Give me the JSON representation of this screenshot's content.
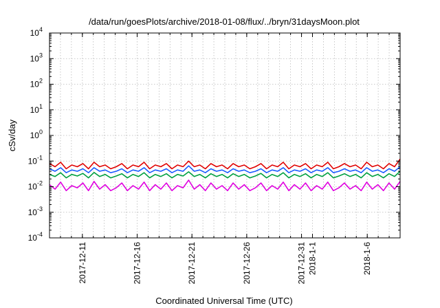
{
  "chart_data": {
    "type": "line",
    "title": "/data/run/goesPlots/archive/2018-01-08/flux/../bryn/31daysMoon.plot",
    "xlabel": "Coordinated Universal Time (UTC)",
    "ylabel": "cSv/day",
    "yscale": "log",
    "ylim": [
      0.0001,
      10000
    ],
    "xlim": [
      "2017-12-08",
      "2018-01-09"
    ],
    "grid": true,
    "y_ticks": [
      {
        "base": "10",
        "exp": "-4",
        "value": 0.0001
      },
      {
        "base": "10",
        "exp": "-3",
        "value": 0.001
      },
      {
        "base": "10",
        "exp": "-2",
        "value": 0.01
      },
      {
        "base": "10",
        "exp": "-1",
        "value": 0.1
      },
      {
        "base": "10",
        "exp": "0",
        "value": 1
      },
      {
        "base": "10",
        "exp": "1",
        "value": 10
      },
      {
        "base": "10",
        "exp": "2",
        "value": 100
      },
      {
        "base": "10",
        "exp": "3",
        "value": 1000
      },
      {
        "base": "10",
        "exp": "4",
        "value": 10000
      }
    ],
    "x_ticks": [
      {
        "label": "2017-12-11",
        "date": "2017-12-11"
      },
      {
        "label": "2017-12-16",
        "date": "2017-12-16"
      },
      {
        "label": "2017-12-21",
        "date": "2017-12-21"
      },
      {
        "label": "2017-12-26",
        "date": "2017-12-26"
      },
      {
        "label": "2017-12-31",
        "date": "2017-12-31"
      },
      {
        "label": "2018-1-1",
        "date": "2018-01-01"
      },
      {
        "label": "2018-1-6",
        "date": "2018-01-06"
      }
    ],
    "series": [
      {
        "color": "#e00000",
        "values": [
          0.08,
          0.06,
          0.09,
          0.05,
          0.07,
          0.06,
          0.08,
          0.05,
          0.09,
          0.06,
          0.07,
          0.05,
          0.06,
          0.08,
          0.05,
          0.07,
          0.06,
          0.09,
          0.05,
          0.07,
          0.06,
          0.08,
          0.05,
          0.07,
          0.06,
          0.1,
          0.06,
          0.07,
          0.05,
          0.08,
          0.06,
          0.07,
          0.05,
          0.08,
          0.06,
          0.07,
          0.05,
          0.06,
          0.08,
          0.05,
          0.07,
          0.06,
          0.09,
          0.05,
          0.07,
          0.06,
          0.08,
          0.05,
          0.07,
          0.06,
          0.09,
          0.05,
          0.06,
          0.08,
          0.06,
          0.07,
          0.05,
          0.09,
          0.06,
          0.07,
          0.05,
          0.08,
          0.06,
          0.12
        ]
      },
      {
        "color": "#00a040",
        "values": [
          0.03,
          0.025,
          0.035,
          0.022,
          0.03,
          0.026,
          0.033,
          0.022,
          0.036,
          0.025,
          0.03,
          0.022,
          0.026,
          0.032,
          0.022,
          0.03,
          0.025,
          0.035,
          0.022,
          0.03,
          0.025,
          0.032,
          0.022,
          0.03,
          0.026,
          0.038,
          0.025,
          0.03,
          0.022,
          0.032,
          0.025,
          0.03,
          0.022,
          0.032,
          0.025,
          0.03,
          0.022,
          0.026,
          0.033,
          0.022,
          0.03,
          0.025,
          0.035,
          0.022,
          0.03,
          0.025,
          0.032,
          0.022,
          0.03,
          0.025,
          0.035,
          0.022,
          0.026,
          0.032,
          0.025,
          0.03,
          0.022,
          0.035,
          0.025,
          0.03,
          0.022,
          0.032,
          0.025,
          0.04
        ]
      },
      {
        "color": "#1a5cff",
        "values": [
          0.05,
          0.04,
          0.055,
          0.035,
          0.045,
          0.04,
          0.05,
          0.035,
          0.055,
          0.04,
          0.045,
          0.035,
          0.04,
          0.05,
          0.035,
          0.045,
          0.04,
          0.055,
          0.035,
          0.045,
          0.04,
          0.05,
          0.035,
          0.045,
          0.04,
          0.065,
          0.04,
          0.045,
          0.035,
          0.05,
          0.04,
          0.045,
          0.035,
          0.05,
          0.04,
          0.045,
          0.035,
          0.04,
          0.05,
          0.035,
          0.045,
          0.04,
          0.055,
          0.035,
          0.045,
          0.04,
          0.05,
          0.035,
          0.045,
          0.04,
          0.055,
          0.035,
          0.04,
          0.05,
          0.04,
          0.045,
          0.035,
          0.055,
          0.04,
          0.045,
          0.035,
          0.05,
          0.04,
          0.06
        ]
      },
      {
        "color": "#e000e0",
        "values": [
          0.012,
          0.008,
          0.015,
          0.007,
          0.011,
          0.009,
          0.014,
          0.007,
          0.016,
          0.008,
          0.012,
          0.007,
          0.009,
          0.014,
          0.007,
          0.011,
          0.008,
          0.015,
          0.007,
          0.012,
          0.008,
          0.014,
          0.007,
          0.011,
          0.009,
          0.018,
          0.008,
          0.012,
          0.007,
          0.014,
          0.008,
          0.011,
          0.007,
          0.014,
          0.008,
          0.012,
          0.007,
          0.009,
          0.014,
          0.007,
          0.011,
          0.008,
          0.015,
          0.007,
          0.012,
          0.008,
          0.014,
          0.007,
          0.011,
          0.008,
          0.015,
          0.007,
          0.009,
          0.014,
          0.008,
          0.011,
          0.007,
          0.015,
          0.008,
          0.012,
          0.007,
          0.014,
          0.008,
          0.016
        ]
      }
    ]
  }
}
